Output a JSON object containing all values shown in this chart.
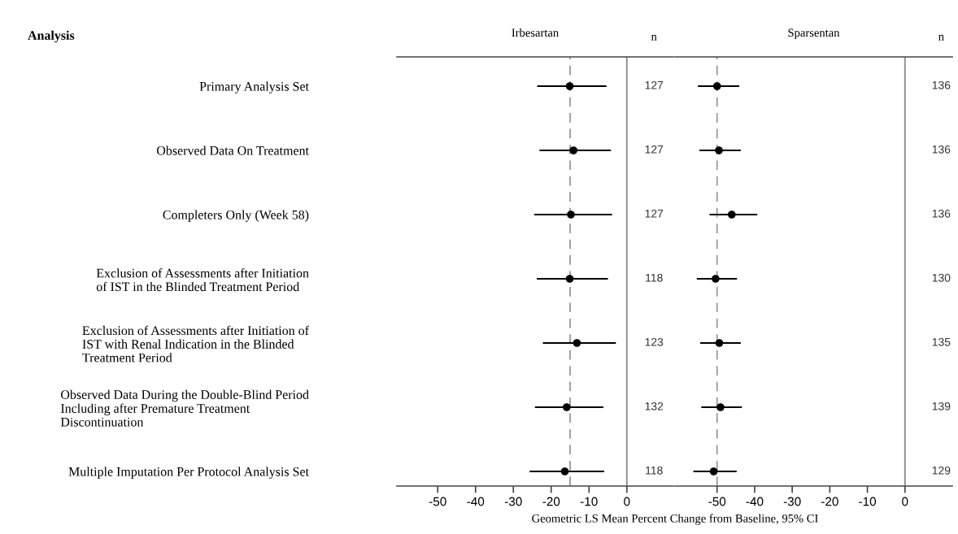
{
  "chart_data": [
    {
      "type": "scatter",
      "orientation": "horizontal",
      "title": "Irbesartan",
      "ylabel": "Analysis",
      "categories": [
        "Primary Analysis Set",
        "Observed Data On Treatment",
        "Completers Only (Week 58)",
        "Exclusion of Assessments after Initiation\nof IST in the Blinded Treatment Period",
        "Exclusion of Assessments after Initiation of\nIST with Renal Indication in the Blinded\nTreatment Period",
        "Observed Data During the Double-Blind Period\nIncluding after Premature Treatment\nDiscontinuation",
        "Multiple Imputation Per Protocol Analysis Set"
      ],
      "series": [
        {
          "color": "#000000",
          "values": [
            -15.1,
            -14.1,
            -14.8,
            -15.1,
            -13.2,
            -15.9,
            -16.4
          ],
          "errors": [
            [
              -23.7,
              -5.4
            ],
            [
              -23.1,
              -4.2
            ],
            [
              -24.5,
              -3.9
            ],
            [
              -23.8,
              -5.0
            ],
            [
              -22.2,
              -2.9
            ],
            [
              -24.3,
              -6.2
            ],
            [
              -25.7,
              -6.0
            ]
          ]
        }
      ],
      "marker": "circle",
      "xlim": [
        -60.8,
        12.3
      ],
      "xticks": [
        -50,
        -40,
        -30,
        -20,
        -10,
        0
      ],
      "ref_lines": [
        {
          "axis": "x",
          "value": -15,
          "color": "#a0a0a0",
          "line_style": "dashed"
        },
        {
          "axis": "x",
          "value": 0,
          "color": "#909090",
          "line_style": "solid"
        }
      ],
      "annotations": [
        "n",
        "127",
        "127",
        "127",
        "118",
        "123",
        "132",
        "118"
      ],
      "grid": false,
      "legend": false
    },
    {
      "type": "scatter",
      "orientation": "horizontal",
      "title": "Sparsentan",
      "xlabel": "Geometric LS Mean Percent Change from Baseline, 95% CI",
      "categories": [
        null,
        null,
        null,
        null,
        null,
        null,
        null
      ],
      "series": [
        {
          "color": "#000000",
          "values": [
            -50.0,
            -49.5,
            -46.1,
            -50.4,
            -49.4,
            -49.1,
            -50.9
          ],
          "errors": [
            [
              -55.1,
              -44.1
            ],
            [
              -54.7,
              -43.7
            ],
            [
              -52.0,
              -39.3
            ],
            [
              -55.4,
              -44.7
            ],
            [
              -54.5,
              -43.7
            ],
            [
              -54.2,
              -43.4
            ],
            [
              -56.3,
              -44.8
            ]
          ]
        }
      ],
      "marker": "circle",
      "xlim": [
        -61.2,
        12.6
      ],
      "xticks": [
        -50,
        -40,
        -30,
        -20,
        -10,
        0
      ],
      "tick_labels": "x",
      "ref_lines": [
        {
          "axis": "x",
          "value": -50,
          "color": "#a0a0a0",
          "line_style": "dashed"
        },
        {
          "axis": "x",
          "value": 0,
          "color": "#909090",
          "line_style": "solid"
        }
      ],
      "annotations": [
        "n",
        "136",
        "136",
        "136",
        "130",
        "135",
        "139",
        "129"
      ],
      "grid": false,
      "legend": false
    }
  ]
}
